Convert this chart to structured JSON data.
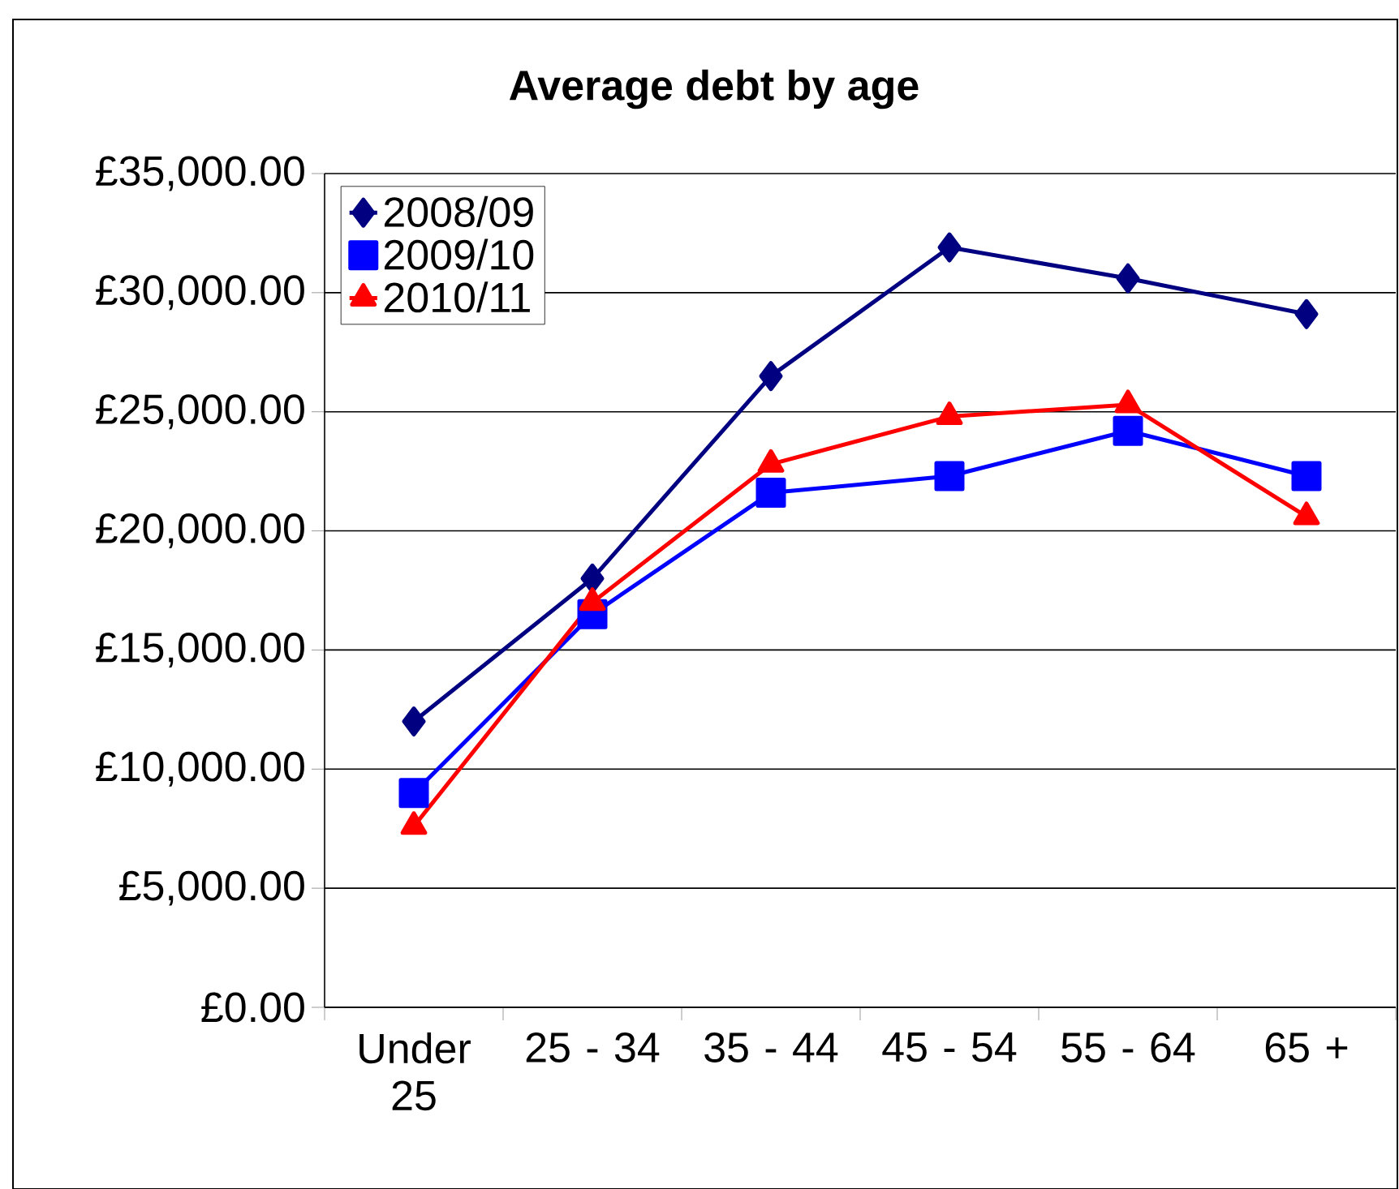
{
  "chart_data": {
    "type": "line",
    "title": "Average debt by age",
    "categories": [
      "Under 25",
      "25 - 34",
      "35 - 44",
      "45 - 54",
      "55 - 64",
      "65 +"
    ],
    "series": [
      {
        "name": "2008/09",
        "color": "#000080",
        "marker": "diamond",
        "values": [
          12000,
          18000,
          26500,
          31900,
          30600,
          29100
        ]
      },
      {
        "name": "2009/10",
        "color": "#0000ff",
        "marker": "square",
        "values": [
          9000,
          16500,
          21600,
          22300,
          24200,
          22300
        ]
      },
      {
        "name": "2010/11",
        "color": "#ff0000",
        "marker": "triangle",
        "values": [
          7600,
          17000,
          22800,
          24800,
          25300,
          20600
        ]
      }
    ],
    "ylim": [
      0,
      35000
    ],
    "yticks": [
      {
        "value": 0,
        "label": "£0.00"
      },
      {
        "value": 5000,
        "label": "£5,000.00"
      },
      {
        "value": 10000,
        "label": "£10,000.00"
      },
      {
        "value": 15000,
        "label": "£15,000.00"
      },
      {
        "value": 20000,
        "label": "£20,000.00"
      },
      {
        "value": 25000,
        "label": "£25,000.00"
      },
      {
        "value": 30000,
        "label": "£30,000.00"
      },
      {
        "value": 35000,
        "label": "£35,000.00"
      }
    ],
    "grid": "y",
    "legend": "top left",
    "line_style": "solid"
  }
}
